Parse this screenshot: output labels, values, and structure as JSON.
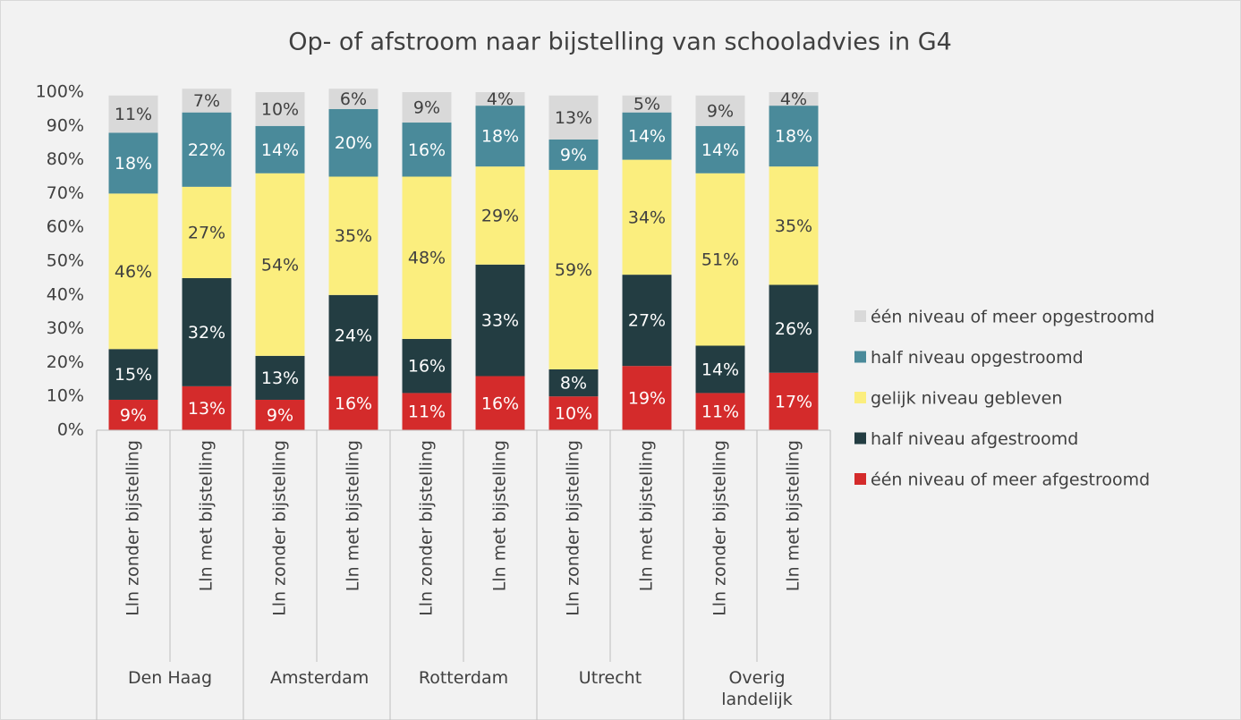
{
  "chart_data": {
    "type": "stacked_bar",
    "title": "Op- of afstroom naar bijstelling van schooladvies in G4",
    "categories": [
      "Lln zonder bijstelling",
      "Lln met bijstelling",
      "Lln zonder bijstelling",
      "Lln met bijstelling",
      "Lln zonder bijstelling",
      "Lln met bijstelling",
      "Lln zonder bijstelling",
      "Lln met bijstelling",
      "Lln zonder bijstelling",
      "Lln met bijstelling"
    ],
    "groups": [
      "Den Haag",
      "Amsterdam",
      "Rotterdam",
      "Utrecht",
      "Overig landelijk"
    ],
    "series": [
      {
        "name": "één niveau of meer afgestroomd",
        "color": "#d42b2b",
        "values": [
          9,
          13,
          9,
          16,
          11,
          16,
          10,
          19,
          11,
          17
        ],
        "value_labels": [
          "9%",
          "13%",
          "9%",
          "16%",
          "11%",
          "16%",
          "10%",
          "19%",
          "11%",
          "17%"
        ]
      },
      {
        "name": "half niveau afgestroomd",
        "color": "#233d42",
        "values": [
          15,
          32,
          13,
          24,
          16,
          33,
          8,
          27,
          14,
          26
        ],
        "value_labels": [
          "15%",
          "32%",
          "13%",
          "24%",
          "16%",
          "33%",
          "8%",
          "27%",
          "14%",
          "26%"
        ]
      },
      {
        "name": "gelijk niveau gebleven",
        "color": "#fbee7e",
        "values": [
          46,
          27,
          54,
          35,
          48,
          29,
          59,
          34,
          51,
          35
        ],
        "value_labels": [
          "46%",
          "27%",
          "54%",
          "35%",
          "48%",
          "29%",
          "59%",
          "34%",
          "51%",
          "35%"
        ]
      },
      {
        "name": "half niveau opgestroomd",
        "color": "#4a8a9a",
        "values": [
          18,
          22,
          14,
          20,
          16,
          18,
          9,
          14,
          14,
          18
        ],
        "value_labels": [
          "18%",
          "22%",
          "14%",
          "20%",
          "16%",
          "18%",
          "9%",
          "14%",
          "14%",
          "18%"
        ]
      },
      {
        "name": "één niveau of meer opgestroomd",
        "color": "#d9d9d9",
        "values": [
          11,
          7,
          10,
          6,
          9,
          4,
          13,
          5,
          9,
          4
        ],
        "value_labels": [
          "11%",
          "7%",
          "10%",
          "6%",
          "9%",
          "4%",
          "13%",
          "5%",
          "9%",
          "4%"
        ]
      }
    ],
    "ylim": [
      0,
      100
    ],
    "yticks": [
      {
        "value": 0,
        "label": "0%"
      },
      {
        "value": 10,
        "label": "10%"
      },
      {
        "value": 20,
        "label": "20%"
      },
      {
        "value": 30,
        "label": "30%"
      },
      {
        "value": 40,
        "label": "40%"
      },
      {
        "value": 50,
        "label": "50%"
      },
      {
        "value": 60,
        "label": "60%"
      },
      {
        "value": 70,
        "label": "70%"
      },
      {
        "value": 80,
        "label": "80%"
      },
      {
        "value": 90,
        "label": "90%"
      },
      {
        "value": 100,
        "label": "100%"
      }
    ],
    "legend": "right"
  }
}
